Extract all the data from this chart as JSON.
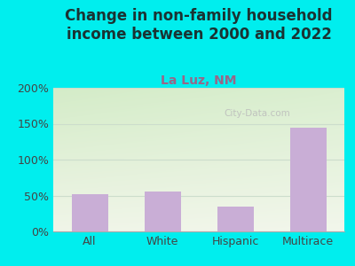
{
  "title": "Change in non-family household\nincome between 2000 and 2022",
  "subtitle": "La Luz, NM",
  "categories": [
    "All",
    "White",
    "Hispanic",
    "Multirace"
  ],
  "values": [
    52,
    55,
    35,
    145
  ],
  "bar_color": "#c9aed6",
  "title_fontsize": 12,
  "subtitle_fontsize": 10,
  "subtitle_color": "#996688",
  "title_color": "#1a3333",
  "background_outer": "#00eeee",
  "background_inner_top_left": "#d4ecc8",
  "background_inner_top_right": "#e8f0e8",
  "background_inner_bottom": "#f0f5e8",
  "ylim": [
    0,
    200
  ],
  "yticks": [
    0,
    50,
    100,
    150,
    200
  ],
  "ytick_labels": [
    "0%",
    "50%",
    "100%",
    "150%",
    "200%"
  ],
  "watermark": "City-Data.com",
  "watermark_color": "#bbbbbb",
  "grid_color": "#ccddcc"
}
